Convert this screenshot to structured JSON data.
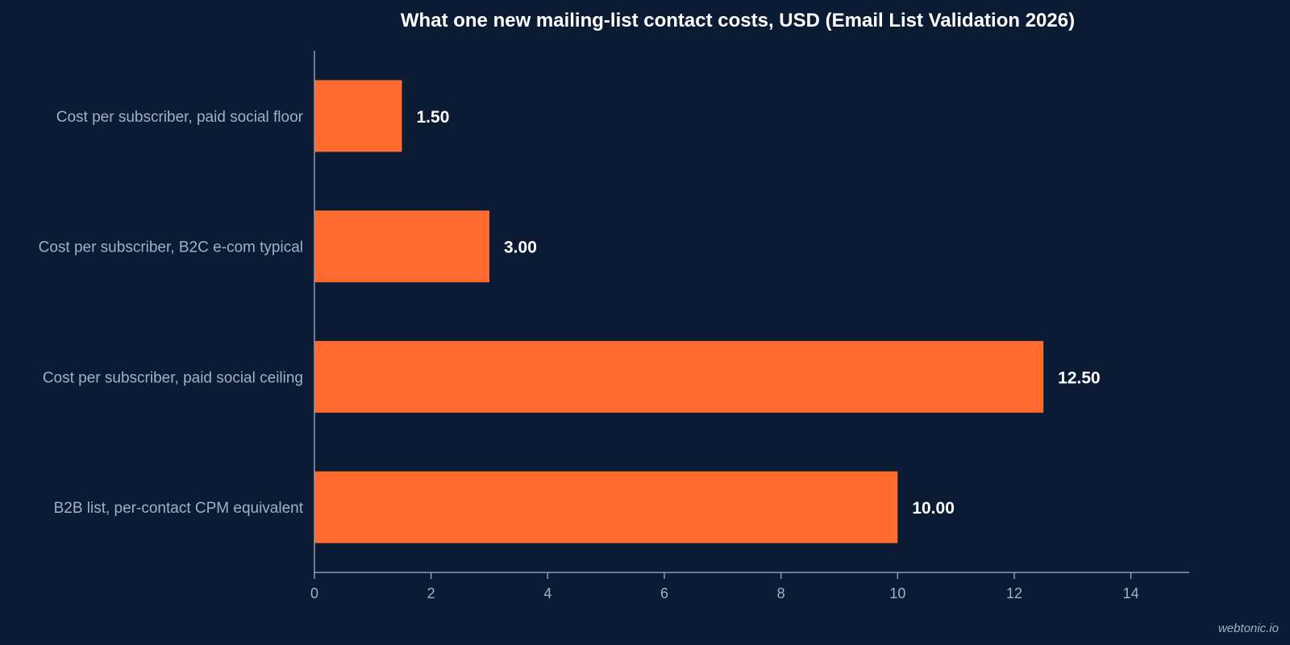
{
  "chart_data": {
    "type": "bar",
    "orientation": "horizontal",
    "title": "What one new mailing-list contact costs, USD (Email List Validation 2026)",
    "categories": [
      "Cost per subscriber, paid social floor",
      "Cost per subscriber, B2C e-com typical",
      "Cost per subscriber, paid social ceiling",
      "B2B list, per-contact CPM equivalent"
    ],
    "values": [
      1.5,
      3.0,
      12.5,
      10.0
    ],
    "value_labels": [
      "1.50",
      "3.00",
      "12.50",
      "10.00"
    ],
    "xlim": [
      0,
      15
    ],
    "xticks": [
      0,
      2,
      4,
      6,
      8,
      10,
      12,
      14
    ],
    "xlabel": "",
    "ylabel": "",
    "grid": false,
    "colors": {
      "bar": "#ff6b2f",
      "background": "#0b1b33",
      "axis": "#8a9bb5"
    }
  },
  "watermark": "webtonic.io"
}
